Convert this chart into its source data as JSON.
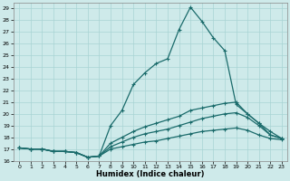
{
  "xlabel": "Humidex (Indice chaleur)",
  "background_color": "#ceeaea",
  "line_color": "#1a6b6b",
  "grid_color": "#a8d4d4",
  "xlim": [
    -0.5,
    23.5
  ],
  "ylim": [
    16,
    29.5
  ],
  "yticks": [
    16,
    17,
    18,
    19,
    20,
    21,
    22,
    23,
    24,
    25,
    26,
    27,
    28,
    29
  ],
  "xticks": [
    0,
    1,
    2,
    3,
    4,
    5,
    6,
    7,
    8,
    9,
    10,
    11,
    12,
    13,
    14,
    15,
    16,
    17,
    18,
    19,
    20,
    21,
    22,
    23
  ],
  "line1_x": [
    0,
    1,
    2,
    3,
    4,
    5,
    6,
    7,
    8,
    9,
    10,
    11,
    12,
    13,
    14,
    15,
    16,
    17,
    18,
    19,
    20,
    21,
    22,
    23
  ],
  "line1_y": [
    17.1,
    17.0,
    17.0,
    16.8,
    16.8,
    16.7,
    16.3,
    16.4,
    19.0,
    20.3,
    22.5,
    23.5,
    24.3,
    24.7,
    27.2,
    29.1,
    27.9,
    26.5,
    25.4,
    20.8,
    20.0,
    19.2,
    18.2,
    17.9
  ],
  "line2_x": [
    0,
    1,
    2,
    3,
    4,
    5,
    6,
    7,
    8,
    9,
    10,
    11,
    12,
    13,
    14,
    15,
    16,
    17,
    18,
    19,
    20,
    21,
    22,
    23
  ],
  "line2_y": [
    17.1,
    17.0,
    17.0,
    16.8,
    16.8,
    16.7,
    16.3,
    16.4,
    17.5,
    18.0,
    18.5,
    18.9,
    19.2,
    19.5,
    19.8,
    20.3,
    20.5,
    20.7,
    20.9,
    21.0,
    20.0,
    19.2,
    18.5,
    17.9
  ],
  "line3_x": [
    0,
    1,
    2,
    3,
    4,
    5,
    6,
    7,
    8,
    9,
    10,
    11,
    12,
    13,
    14,
    15,
    16,
    17,
    18,
    19,
    20,
    21,
    22,
    23
  ],
  "line3_y": [
    17.1,
    17.0,
    17.0,
    16.8,
    16.8,
    16.7,
    16.3,
    16.4,
    17.2,
    17.6,
    18.0,
    18.3,
    18.5,
    18.7,
    19.0,
    19.3,
    19.6,
    19.8,
    20.0,
    20.1,
    19.7,
    19.0,
    18.2,
    17.9
  ],
  "line4_x": [
    0,
    1,
    2,
    3,
    4,
    5,
    6,
    7,
    8,
    9,
    10,
    11,
    12,
    13,
    14,
    15,
    16,
    17,
    18,
    19,
    20,
    21,
    22,
    23
  ],
  "line4_y": [
    17.1,
    17.0,
    17.0,
    16.8,
    16.8,
    16.7,
    16.3,
    16.4,
    17.0,
    17.2,
    17.4,
    17.6,
    17.7,
    17.9,
    18.1,
    18.3,
    18.5,
    18.6,
    18.7,
    18.8,
    18.6,
    18.2,
    17.9,
    17.8
  ]
}
